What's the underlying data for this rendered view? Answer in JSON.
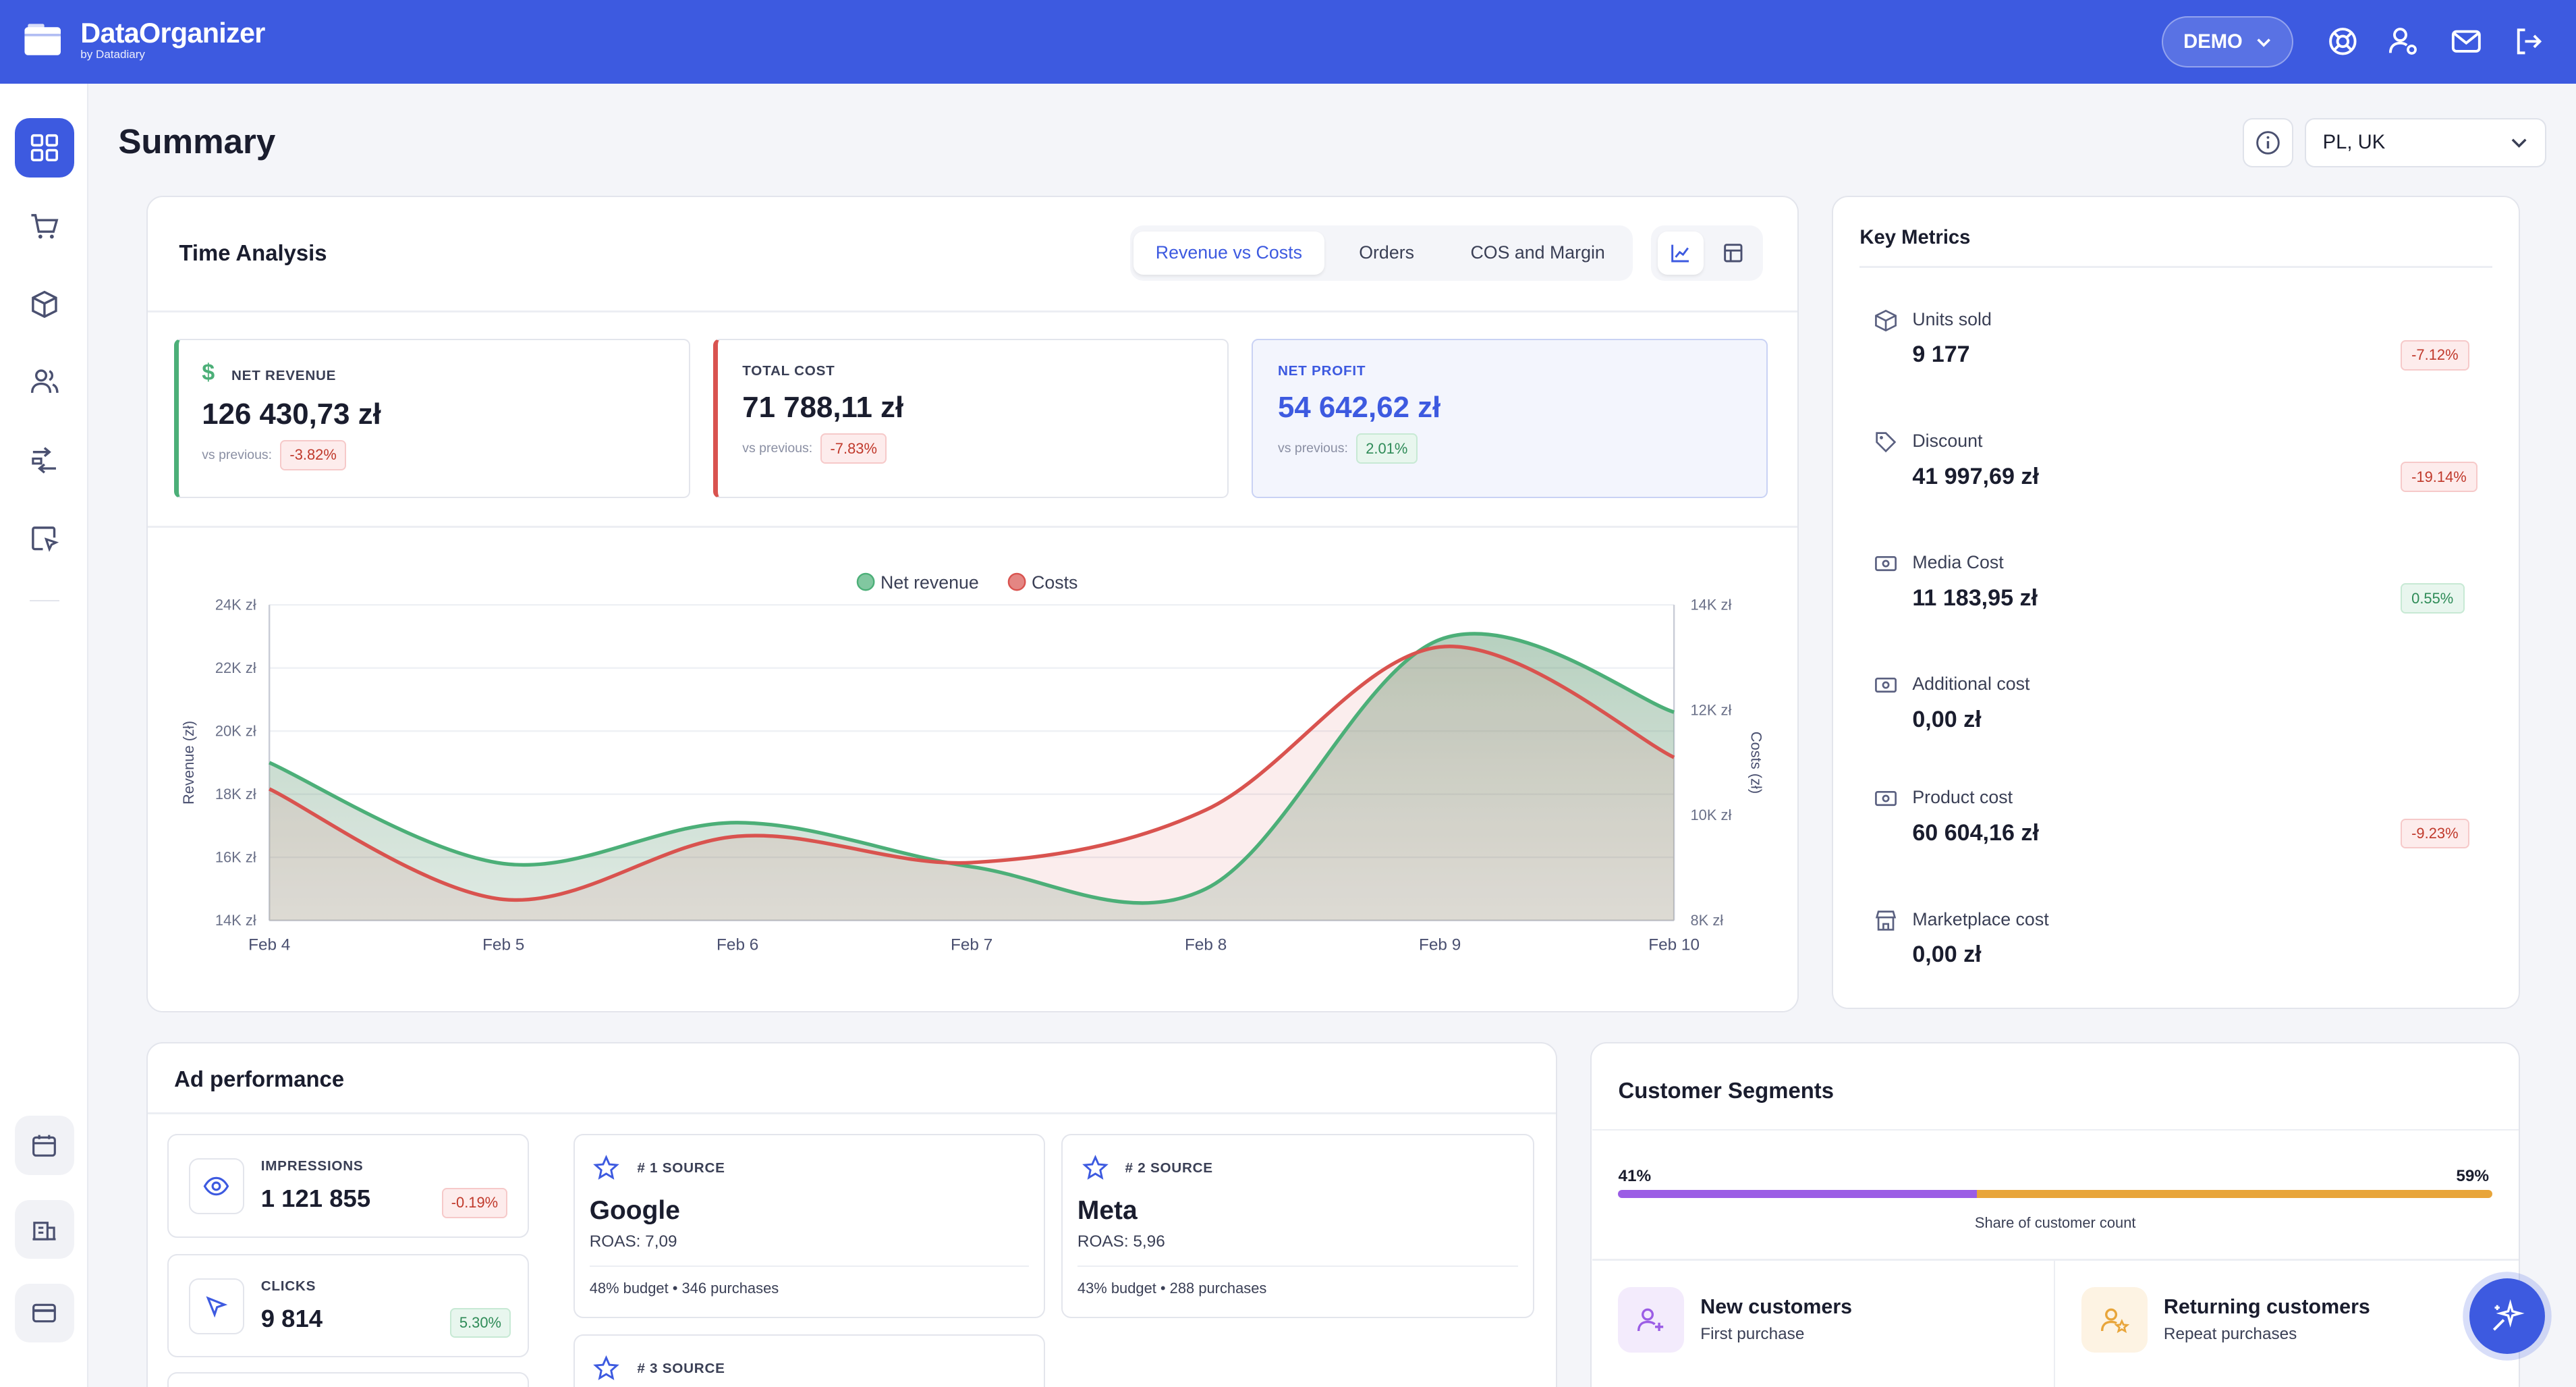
{
  "brand": {
    "name": "DataOrganizer",
    "sub": "by Datadiary"
  },
  "topbar": {
    "account_label": "DEMO"
  },
  "page": {
    "title": "Summary",
    "region": "PL, UK"
  },
  "time_analysis": {
    "title": "Time Analysis",
    "tabs": [
      {
        "label": "Revenue vs Costs",
        "active": true
      },
      {
        "label": "Orders",
        "active": false
      },
      {
        "label": "COS and Margin",
        "active": false
      }
    ],
    "kpis": {
      "net_revenue": {
        "label": "NET REVENUE",
        "value": "126 430,73 zł",
        "cmp_label": "vs previous:",
        "change": "-3.82%"
      },
      "total_cost": {
        "label": "TOTAL COST",
        "value": "71 788,11 zł",
        "cmp_label": "vs previous:",
        "change": "-7.83%"
      },
      "net_profit": {
        "label": "NET PROFIT",
        "value": "54 642,62 zł",
        "cmp_label": "vs previous:",
        "change": "2.01%"
      }
    }
  },
  "chart_data": {
    "type": "area",
    "x": [
      "Feb 4",
      "Feb 5",
      "Feb 6",
      "Feb 7",
      "Feb 8",
      "Feb 9",
      "Feb 10"
    ],
    "series": [
      {
        "name": "Net revenue",
        "axis": "left",
        "color": "#4caf78",
        "values": [
          19000,
          15800,
          17100,
          15700,
          15000,
          22900,
          20600
        ]
      },
      {
        "name": "Costs",
        "axis": "right",
        "color": "#d9534f",
        "values": [
          10500,
          8400,
          9600,
          9100,
          10100,
          13200,
          11100
        ]
      }
    ],
    "ylabel": "Revenue (zł)",
    "y2label": "Costs (zł)",
    "ylim": [
      14000,
      24000
    ],
    "y2lim": [
      8000,
      14000
    ],
    "yticks": [
      "24K zł",
      "22K zł",
      "20K zł",
      "18K zł",
      "16K zł",
      "14K zł"
    ],
    "y2ticks": [
      "14K zł",
      "12K zł",
      "10K zł",
      "8K zł"
    ],
    "legend": "top"
  },
  "key_metrics": {
    "title": "Key Metrics",
    "items": [
      {
        "label": "Units sold",
        "value": "9 177",
        "change": "-7.12%",
        "trend": "neg",
        "icon": "box-icon"
      },
      {
        "label": "Discount",
        "value": "41 997,69 zł",
        "change": "-19.14%",
        "trend": "neg",
        "icon": "tag-icon"
      },
      {
        "label": "Media Cost",
        "value": "11 183,95 zł",
        "change": "0.55%",
        "trend": "pos",
        "icon": "cash-icon"
      },
      {
        "label": "Additional cost",
        "value": "0,00 zł",
        "change": "",
        "trend": "",
        "icon": "cash-icon"
      },
      {
        "label": "Product cost",
        "value": "60 604,16 zł",
        "change": "-9.23%",
        "trend": "neg",
        "icon": "cash-icon"
      },
      {
        "label": "Marketplace cost",
        "value": "0,00 zł",
        "change": "",
        "trend": "",
        "icon": "store-icon"
      }
    ]
  },
  "ad_performance": {
    "title": "Ad performance",
    "impressions": {
      "label": "IMPRESSIONS",
      "value": "1 121 855",
      "change": "-0.19%"
    },
    "clicks": {
      "label": "CLICKS",
      "value": "9 814",
      "change": "5.30%"
    },
    "sources": [
      {
        "rank": "# 1 SOURCE",
        "name": "Google",
        "roas": "ROAS: 7,09",
        "foot": "48% budget • 346 purchases"
      },
      {
        "rank": "# 2 SOURCE",
        "name": "Meta",
        "roas": "ROAS: 5,96",
        "foot": "43% budget • 288 purchases"
      },
      {
        "rank": "# 3 SOURCE"
      }
    ]
  },
  "customer_segments": {
    "title": "Customer Segments",
    "new_share": "41%",
    "returning_share": "59%",
    "new_fraction": 0.41,
    "bar_caption": "Share of customer count",
    "new": {
      "title": "New customers",
      "sub": "First purchase"
    },
    "returning": {
      "title": "Returning customers",
      "sub": "Repeat purchases"
    },
    "colors": {
      "new": "#9b5de5",
      "returning": "#e8a53a"
    }
  }
}
